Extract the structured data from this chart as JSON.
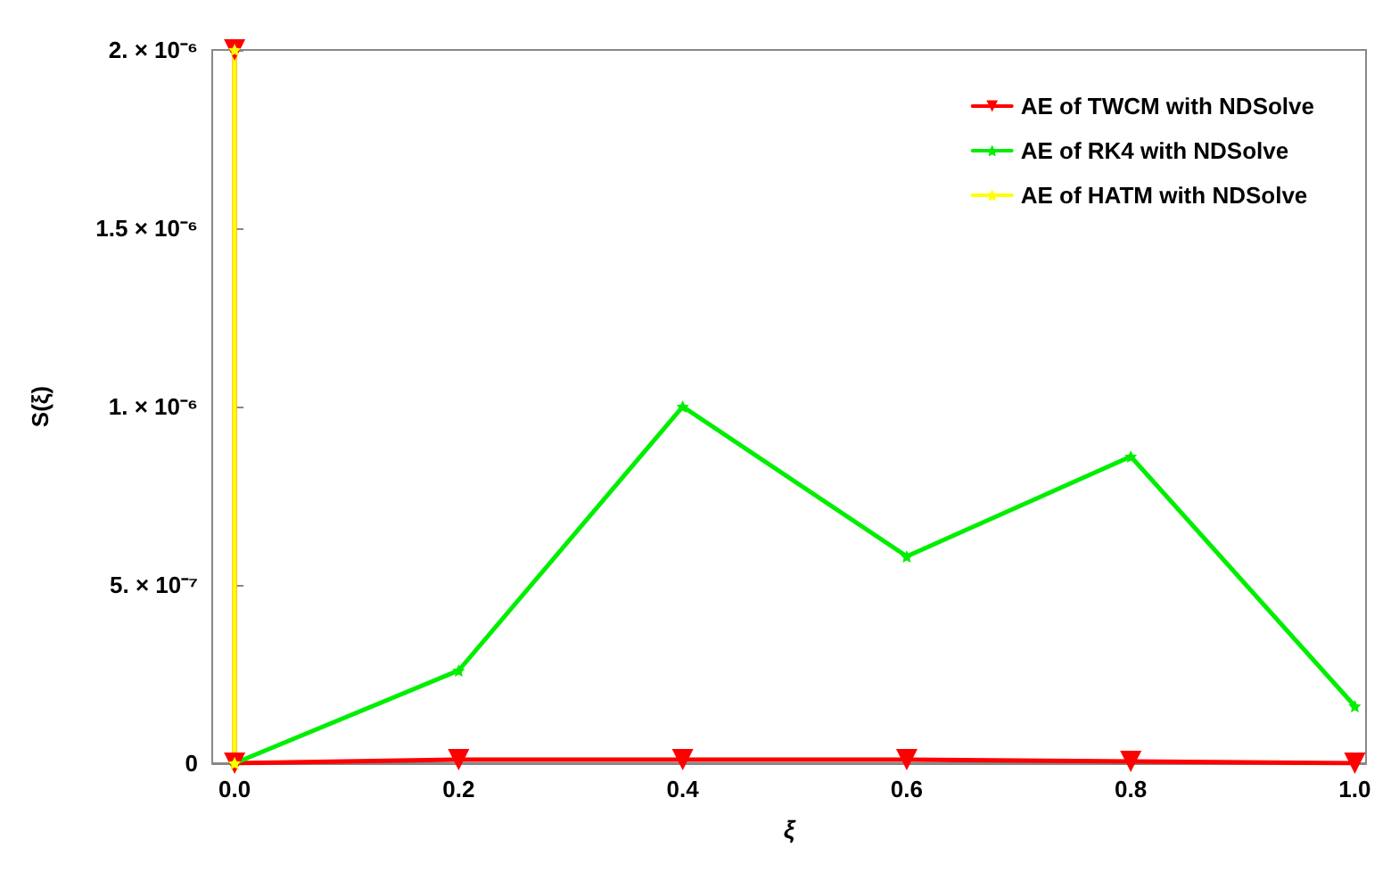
{
  "chart_data": {
    "type": "line",
    "xlabel": "ξ",
    "ylabel": "S(ξ)",
    "xlim": [
      -0.02,
      1.01
    ],
    "ylim": [
      0,
      2e-06
    ],
    "xticks": [
      {
        "value": 0,
        "label": "0.0"
      },
      {
        "value": 0.2,
        "label": "0.2"
      },
      {
        "value": 0.4,
        "label": "0.4"
      },
      {
        "value": 0.6,
        "label": "0.6"
      },
      {
        "value": 0.8,
        "label": "0.8"
      },
      {
        "value": 1,
        "label": "1.0"
      }
    ],
    "yticks": [
      {
        "value": 0,
        "label": "0"
      },
      {
        "value": 5e-07,
        "label": "5. × 10⁻⁷"
      },
      {
        "value": 1e-06,
        "label": "1. × 10⁻⁶"
      },
      {
        "value": 1.5e-06,
        "label": "1.5 × 10⁻⁶"
      },
      {
        "value": 2e-06,
        "label": "2. × 10⁻⁶"
      }
    ],
    "legend": "top right",
    "grid": false,
    "line_style": "solid",
    "series": [
      {
        "name": "AE of TWCM with NDSolve",
        "color": "#ff0000",
        "marker": "triangle",
        "x": [
          0,
          0,
          0.2,
          0.4,
          0.6,
          0.8,
          1.0
        ],
        "values": [
          2e-06,
          0,
          1e-08,
          1e-08,
          1e-08,
          5e-09,
          0
        ]
      },
      {
        "name": "AE of RK4 with NDSolve",
        "color": "#00ee00",
        "marker": "star",
        "x": [
          0,
          0.2,
          0.4,
          0.6,
          0.8,
          1.0
        ],
        "values": [
          0,
          2.6e-07,
          1e-06,
          5.8e-07,
          8.6e-07,
          1.6e-07
        ]
      },
      {
        "name": "AE of HATM with NDSolve",
        "color": "#ffff00",
        "marker": "star",
        "x": [
          0,
          0
        ],
        "values": [
          0,
          2e-06
        ]
      }
    ]
  }
}
